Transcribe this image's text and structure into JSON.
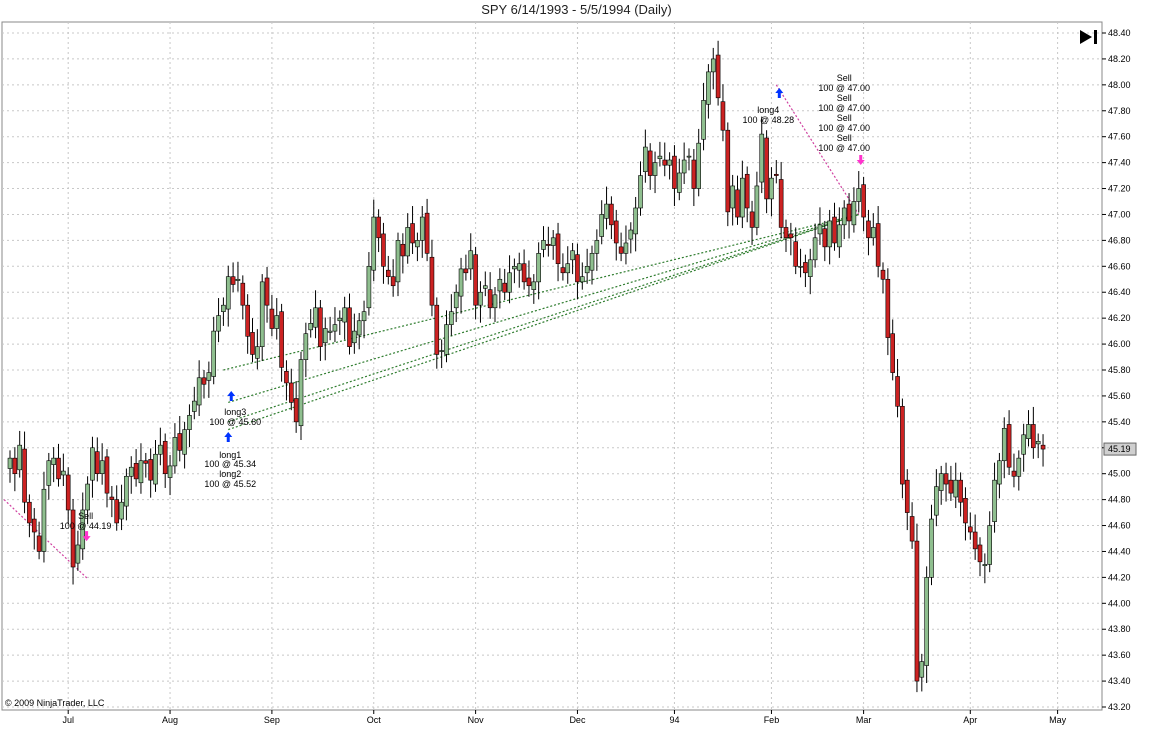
{
  "header": {
    "title": "SPY  6/14/1993 - 5/5/1994 (Daily)"
  },
  "footer": {
    "copyright": "© 2009 NinjaTrader, LLC"
  },
  "controls": {
    "play_end_icon": "skip-to-end-icon"
  },
  "colors": {
    "up": "#8fbf8f",
    "down": "#cc2222",
    "grid": "#c8c8c8",
    "trend": "#2f7d2f",
    "exit_trend": "#d040a0",
    "buy_arrow": "#0033ff",
    "sell_arrow": "#ff33cc",
    "last_price_bg": "#cfcfcf"
  },
  "chart_data": {
    "type": "candlestick",
    "title": "SPY  6/14/1993 - 5/5/1994 (Daily)",
    "ylim": [
      43.2,
      48.4
    ],
    "y_ticks": [
      "48.40",
      "48.20",
      "48.00",
      "47.80",
      "47.60",
      "47.40",
      "47.20",
      "47.00",
      "46.80",
      "46.60",
      "46.40",
      "46.20",
      "46.00",
      "45.80",
      "45.60",
      "45.40",
      "45.20",
      "45.00",
      "44.80",
      "44.60",
      "44.40",
      "44.20",
      "44.00",
      "43.80",
      "43.60",
      "43.40",
      "43.20"
    ],
    "x_ticks": [
      "Jul",
      "Aug",
      "Sep",
      "Oct",
      "Nov",
      "Dec",
      "94",
      "Feb",
      "Mar",
      "Apr",
      "May"
    ],
    "x_tick_index": [
      12,
      33,
      54,
      75,
      96,
      117,
      137,
      157,
      176,
      198,
      216
    ],
    "grid": true,
    "last_price_label": "45.19",
    "closes": [
      45.12,
      45.0,
      45.22,
      44.78,
      44.62,
      44.55,
      44.4,
      44.88,
      45.1,
      45.12,
      44.96,
      45.02,
      44.72,
      44.28,
      44.45,
      44.72,
      44.92,
      45.2,
      45.0,
      45.1,
      44.85,
      44.8,
      44.62,
      44.78,
      44.98,
      45.05,
      44.96,
      45.1,
      45.08,
      44.95,
      45.15,
      45.22,
      45.0,
      45.06,
      45.28,
      45.18,
      45.34,
      45.45,
      45.56,
      45.74,
      45.69,
      45.78,
      46.1,
      46.22,
      46.3,
      46.52,
      46.46,
      46.5,
      46.3,
      46.06,
      45.92,
      45.98,
      46.48,
      46.3,
      46.12,
      46.22,
      45.82,
      45.7,
      45.55,
      45.4,
      45.88,
      46.08,
      46.16,
      46.28,
      45.98,
      46.12,
      46.1,
      46.15,
      46.2,
      46.28,
      45.98,
      46.1,
      46.18,
      46.25,
      46.6,
      46.98,
      46.82,
      46.6,
      46.52,
      46.45,
      46.8,
      46.68,
      46.9,
      46.78,
      46.8,
      46.98,
      46.7,
      46.3,
      45.92,
      45.95,
      46.15,
      46.25,
      46.4,
      46.58,
      46.55,
      46.72,
      46.3,
      46.4,
      46.45,
      46.28,
      46.38,
      46.5,
      46.4,
      46.55,
      46.6,
      46.62,
      46.48,
      46.45,
      46.48,
      46.7,
      46.8,
      46.76,
      46.82,
      46.62,
      46.55,
      46.62,
      46.72,
      46.48,
      46.52,
      46.6,
      46.7,
      46.8,
      47.0,
      47.08,
      46.92,
      46.78,
      46.7,
      46.78,
      46.88,
      47.05,
      47.3,
      47.52,
      47.3,
      47.4,
      47.45,
      47.38,
      47.42,
      47.2,
      47.32,
      47.42,
      47.45,
      47.2,
      47.55,
      47.88,
      48.1,
      48.2,
      47.9,
      47.65,
      47.02,
      47.22,
      46.98,
      47.28,
      47.05,
      46.9,
      47.22,
      47.62,
      47.12,
      47.28,
      47.3,
      46.9,
      46.82,
      46.82,
      46.6,
      46.6,
      46.55,
      46.65,
      46.82,
      46.92,
      46.75,
      46.95,
      46.78,
      46.92,
      47.05,
      46.95,
      47.1,
      47.2,
      46.98,
      46.82,
      46.9,
      46.6,
      46.5,
      46.05,
      45.78,
      45.52,
      44.92,
      44.7,
      44.48,
      43.4,
      43.55,
      44.2,
      44.65,
      44.9,
      45.0,
      44.92,
      44.85,
      44.95,
      44.78,
      44.62,
      44.55,
      44.42,
      44.32,
      44.3,
      44.6,
      44.95,
      45.1,
      45.35,
      45.05,
      44.98,
      45.12,
      45.3,
      45.38,
      45.2,
      45.25,
      45.19
    ],
    "trades": [
      {
        "label": "Sell",
        "detail": "100 @ 44.19"
      },
      {
        "label": "long1",
        "detail": "100 @ 45.34"
      },
      {
        "label": "long2",
        "detail": "100 @ 45.52"
      },
      {
        "label": "long3",
        "detail": "100 @ 45.60"
      },
      {
        "label": "long4",
        "detail": "100 @ 48.28"
      },
      {
        "label": "Sell",
        "detail": "100 @ 47.00"
      },
      {
        "label": "Sell",
        "detail": "100 @ 47.00"
      },
      {
        "label": "Sell",
        "detail": "100 @ 47.00"
      },
      {
        "label": "Sell",
        "detail": "100 @ 47.00"
      }
    ]
  }
}
